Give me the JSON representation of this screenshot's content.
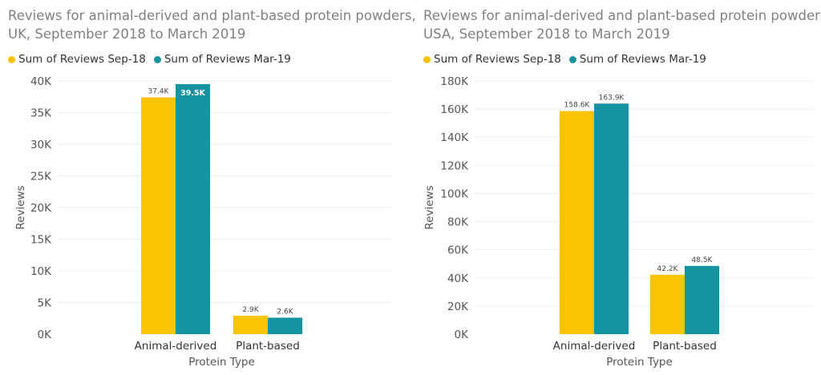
{
  "chart_data": [
    {
      "type": "bar",
      "title_line1": "Reviews for animal-derived and plant-based protein powders,",
      "title_line2": "UK, September 2018 to March 2019",
      "xlabel": "Protein Type",
      "ylabel": "Reviews",
      "categories": [
        "Animal-derived",
        "Plant-based"
      ],
      "series": [
        {
          "name": "Sum of Reviews Sep-18",
          "color": "#F8C300",
          "values": [
            37400,
            2900
          ],
          "labels": [
            "37.4K",
            "2.9K"
          ]
        },
        {
          "name": "Sum of Reviews Mar-19",
          "color": "#1593A0",
          "values": [
            39500,
            2600
          ],
          "labels": [
            "39.5K",
            "2.6K"
          ]
        }
      ],
      "ylim": [
        0,
        40000
      ],
      "yticks": [
        {
          "value": 0,
          "label": "0K"
        },
        {
          "value": 5000,
          "label": "5K"
        },
        {
          "value": 10000,
          "label": "10K"
        },
        {
          "value": 15000,
          "label": "15K"
        },
        {
          "value": 20000,
          "label": "20K"
        },
        {
          "value": 25000,
          "label": "25K"
        },
        {
          "value": 30000,
          "label": "30K"
        },
        {
          "value": 35000,
          "label": "35K"
        },
        {
          "value": 40000,
          "label": "40K"
        }
      ],
      "grid": true,
      "legend": "top-left",
      "highlighted_label": "39.5K"
    },
    {
      "type": "bar",
      "title_line1": "Reviews for animal-derived and plant-based protein powders,",
      "title_line2": "USA, September 2018 to March 2019",
      "xlabel": "Protein Type",
      "ylabel": "Reviews",
      "categories": [
        "Animal-derived",
        "Plant-based"
      ],
      "series": [
        {
          "name": "Sum of Reviews Sep-18",
          "color": "#F8C300",
          "values": [
            158600,
            42200
          ],
          "labels": [
            "158.6K",
            "42.2K"
          ]
        },
        {
          "name": "Sum of Reviews Mar-19",
          "color": "#1593A0",
          "values": [
            163900,
            48500
          ],
          "labels": [
            "163.9K",
            "48.5K"
          ]
        }
      ],
      "ylim": [
        0,
        180000
      ],
      "yticks": [
        {
          "value": 0,
          "label": "0K"
        },
        {
          "value": 20000,
          "label": "20K"
        },
        {
          "value": 40000,
          "label": "40K"
        },
        {
          "value": 60000,
          "label": "60K"
        },
        {
          "value": 80000,
          "label": "80K"
        },
        {
          "value": 100000,
          "label": "100K"
        },
        {
          "value": 120000,
          "label": "120K"
        },
        {
          "value": 140000,
          "label": "140K"
        },
        {
          "value": 160000,
          "label": "160K"
        },
        {
          "value": 180000,
          "label": "180K"
        }
      ],
      "grid": true,
      "legend": "top-left",
      "highlighted_label": ""
    }
  ]
}
